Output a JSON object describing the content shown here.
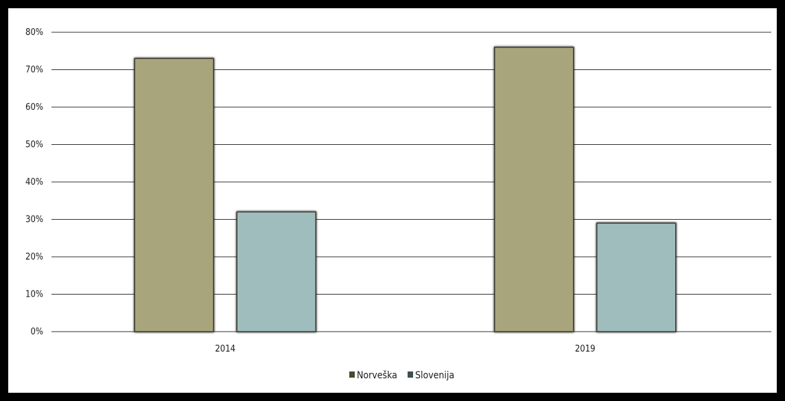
{
  "chart_data": {
    "type": "bar",
    "categories": [
      "2014",
      "2019"
    ],
    "series": [
      {
        "name": "Norveška",
        "values": [
          73,
          76
        ],
        "color": "#a8a57c"
      },
      {
        "name": "Slovenija",
        "values": [
          32,
          29
        ],
        "color": "#9fbdbd"
      }
    ],
    "ylim": [
      0,
      80
    ],
    "yticks": [
      0,
      10,
      20,
      30,
      40,
      50,
      60,
      70,
      80
    ],
    "ytick_labels": [
      "0%",
      "10%",
      "20%",
      "30%",
      "40%",
      "50%",
      "60%",
      "70%",
      "80%"
    ],
    "grid": true,
    "legend_position": "bottom-center",
    "title": "",
    "xlabel": "",
    "ylabel": ""
  },
  "colors": {
    "frame": "#000000",
    "grid": "#333333",
    "norveska": "#a8a57c",
    "slovenija": "#9fbdbd",
    "bar_edge": "#3a3a2e"
  }
}
